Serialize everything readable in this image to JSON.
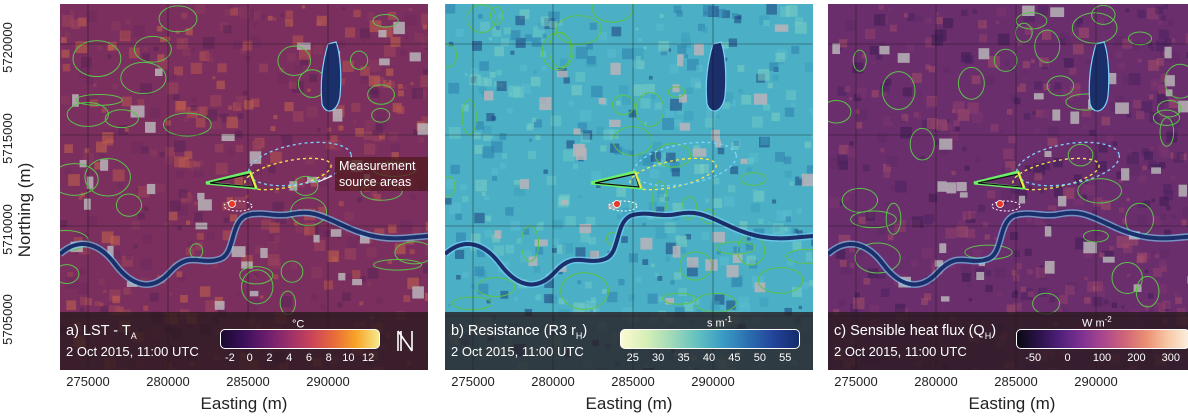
{
  "axes": {
    "ylabel": "Northing (m)",
    "xlabel": "Easting (m)",
    "y_ticks": [
      "5705000",
      "5710000",
      "5715000",
      "5720000"
    ],
    "x_ticks": [
      "275000",
      "280000",
      "285000",
      "290000"
    ]
  },
  "panels": [
    {
      "title_main": "a) LST - T",
      "title_sub": "A",
      "title_end": "",
      "date": "2 Oct 2015, 11:00 UTC",
      "unit": "°C",
      "unit_sup": "",
      "colorbar_ticks": [
        "-2",
        "0",
        "2",
        "4",
        "6",
        "8",
        "10",
        "12"
      ],
      "annotation": "Measurement source areas",
      "colormap": [
        "#1a0a2e",
        "#3a0f5a",
        "#6a1d6e",
        "#9a2f6a",
        "#c9435a",
        "#e86a3a",
        "#f7a528",
        "#f6e98b"
      ]
    },
    {
      "title_main": "b) Resistance (R3 r",
      "title_sub": "H",
      "title_end": ")",
      "date": "2 Oct 2015, 11:00 UTC",
      "unit": "s m",
      "unit_sup": "-1",
      "colorbar_ticks": [
        "25",
        "30",
        "35",
        "40",
        "45",
        "50",
        "55"
      ],
      "colormap": [
        "#fbfad0",
        "#d6efb6",
        "#a0d9b8",
        "#63c1c0",
        "#3a9cc4",
        "#2a6fb0",
        "#23449a",
        "#142b6a"
      ]
    },
    {
      "title_main": "c) Sensible heat flux (Q",
      "title_sub": "H",
      "title_end": ")",
      "date": "2 Oct 2015, 11:00 UTC",
      "unit": "W m",
      "unit_sup": "-2",
      "colorbar_ticks": [
        "-50",
        "0",
        "100",
        "200",
        "300"
      ],
      "colormap": [
        "#0a0a12",
        "#2a1248",
        "#51207a",
        "#7d3192",
        "#a9468e",
        "#cf6479",
        "#eb8f73",
        "#f7c7a4",
        "#fcefe0"
      ]
    }
  ],
  "colors": {
    "panel_a_base": "#7a2f5e",
    "panel_b_base": "#4bb0c5",
    "panel_c_base": "#6a2e6c",
    "green_outline": "#5cc24a",
    "river": "#1b2f6a",
    "river_edge": "#7fd3ff"
  }
}
